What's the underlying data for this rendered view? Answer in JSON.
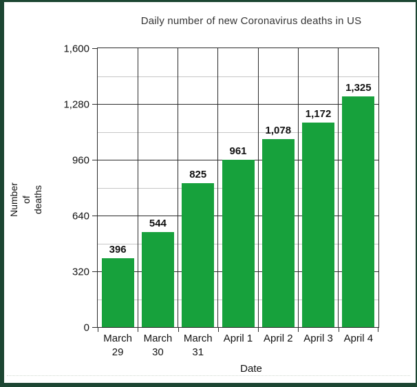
{
  "frame_color": "#1c4632",
  "chart_data": {
    "type": "bar",
    "title": "Daily number of new Coronavirus deaths in US",
    "xlabel": "Date",
    "ylabel": "Number of deaths",
    "ylabel_lines": "Number\nof\ndeaths",
    "categories": [
      "March 29",
      "March 30",
      "March 31",
      "April 1",
      "April 2",
      "April 3",
      "April 4"
    ],
    "category_labels": [
      "March\n29",
      "March\n30",
      "March\n31",
      "April 1",
      "April 2",
      "April 3",
      "April 4"
    ],
    "values": [
      396,
      544,
      825,
      961,
      1078,
      1172,
      1325
    ],
    "value_labels": [
      "396",
      "544",
      "825",
      "961",
      "1,078",
      "1,172",
      "1,325"
    ],
    "ylim": [
      0,
      1600
    ],
    "ytick_interval": 320,
    "ytick_minor_interval": 160,
    "ytick_labels": [
      "0",
      "320",
      "640",
      "960",
      "1,280",
      "1,600"
    ],
    "grid": true,
    "legend": "none",
    "bar_color": "#17a13c",
    "grid_major_color": "#2a2a2a",
    "grid_minor_color": "#c6c6c6"
  }
}
